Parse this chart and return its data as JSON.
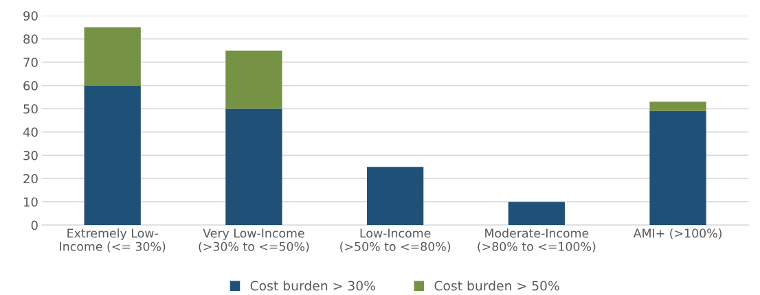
{
  "chart_data": {
    "type": "bar",
    "stacked": true,
    "categories": [
      "Extremely Low-\nIncome (<= 30%)",
      "Very Low-Income\n(>30% to <=50%)",
      "Low-Income\n(>50% to <=80%)",
      "Moderate-Income\n(>80% to <=100%)",
      "AMI+ (>100%)"
    ],
    "series": [
      {
        "name": "Cost burden > 30%",
        "color": "#1f5078",
        "values": [
          60,
          50,
          25,
          10,
          49
        ]
      },
      {
        "name": "Cost burden > 50%",
        "color": "#769245",
        "values": [
          25,
          25,
          0,
          0,
          4
        ]
      }
    ],
    "ylim": [
      0,
      90
    ],
    "yticks": [
      0,
      10,
      20,
      30,
      40,
      50,
      60,
      70,
      80,
      90
    ],
    "grid": "y",
    "legend": "bottom"
  }
}
